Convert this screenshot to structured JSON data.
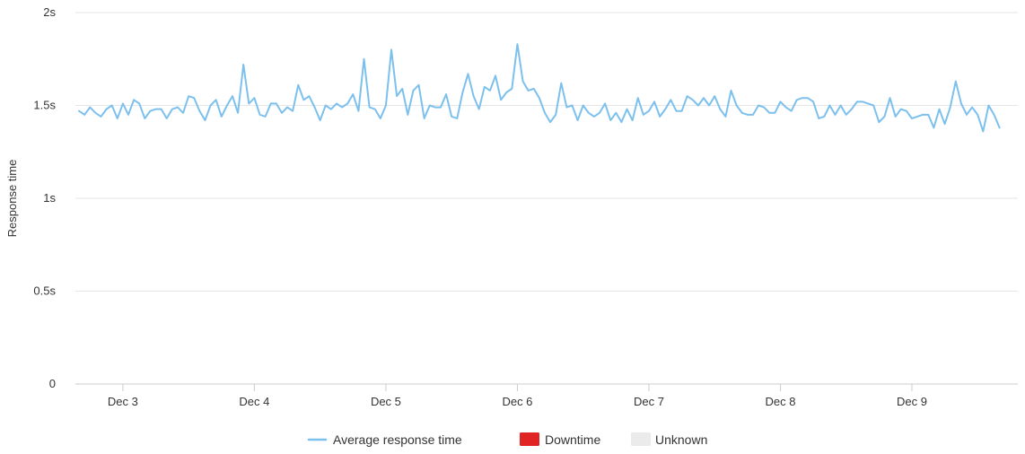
{
  "chart_data": {
    "type": "line",
    "title": "",
    "xlabel": "",
    "ylabel": "Response time",
    "y_ticks": [
      {
        "value": 0,
        "label": "0"
      },
      {
        "value": 0.5,
        "label": "0.5s"
      },
      {
        "value": 1,
        "label": "1s"
      },
      {
        "value": 1.5,
        "label": "1.5s"
      },
      {
        "value": 2,
        "label": "2s"
      }
    ],
    "ylim": [
      0,
      2
    ],
    "x_ticks": [
      {
        "value": "2023-12-03",
        "label": "Dec 3"
      },
      {
        "value": "2023-12-04",
        "label": "Dec 4"
      },
      {
        "value": "2023-12-05",
        "label": "Dec 5"
      },
      {
        "value": "2023-12-06",
        "label": "Dec 6"
      },
      {
        "value": "2023-12-07",
        "label": "Dec 7"
      },
      {
        "value": "2023-12-08",
        "label": "Dec 8"
      },
      {
        "value": "2023-12-09",
        "label": "Dec 9"
      }
    ],
    "xlim": [
      "2023-12-02T15:20",
      "2023-12-09T19:20"
    ],
    "grid": true,
    "legend_position": "bottom-center",
    "colors": {
      "series": "#7cc0ee",
      "downtime": "#e02424",
      "unknown": "#ebebeb",
      "grid": "#e6e6e6",
      "axis": "#cccccc"
    },
    "legend": [
      {
        "label": "Average response time",
        "kind": "line",
        "color": "#7cc0ee"
      },
      {
        "label": "Downtime",
        "kind": "box",
        "color": "#e02424"
      },
      {
        "label": "Unknown",
        "kind": "box",
        "color": "#ebebeb"
      }
    ],
    "series": [
      {
        "name": "Average response time",
        "color": "#7cc0ee",
        "start": "2023-12-02T16:00",
        "interval_hours": 1,
        "values": [
          1.47,
          1.45,
          1.49,
          1.46,
          1.44,
          1.48,
          1.5,
          1.43,
          1.51,
          1.45,
          1.53,
          1.51,
          1.43,
          1.47,
          1.48,
          1.48,
          1.43,
          1.48,
          1.49,
          1.46,
          1.55,
          1.54,
          1.47,
          1.42,
          1.5,
          1.53,
          1.44,
          1.5,
          1.55,
          1.46,
          1.72,
          1.51,
          1.54,
          1.45,
          1.44,
          1.51,
          1.51,
          1.46,
          1.49,
          1.47,
          1.61,
          1.53,
          1.55,
          1.49,
          1.42,
          1.5,
          1.48,
          1.51,
          1.49,
          1.51,
          1.56,
          1.47,
          1.75,
          1.49,
          1.48,
          1.43,
          1.5,
          1.8,
          1.55,
          1.59,
          1.45,
          1.58,
          1.61,
          1.43,
          1.5,
          1.49,
          1.49,
          1.56,
          1.44,
          1.43,
          1.57,
          1.67,
          1.55,
          1.48,
          1.6,
          1.58,
          1.66,
          1.53,
          1.57,
          1.59,
          1.83,
          1.63,
          1.58,
          1.59,
          1.54,
          1.46,
          1.41,
          1.45,
          1.62,
          1.49,
          1.5,
          1.42,
          1.5,
          1.46,
          1.44,
          1.46,
          1.51,
          1.42,
          1.46,
          1.41,
          1.48,
          1.42,
          1.54,
          1.45,
          1.47,
          1.52,
          1.44,
          1.48,
          1.53,
          1.47,
          1.47,
          1.55,
          1.53,
          1.5,
          1.54,
          1.5,
          1.55,
          1.48,
          1.44,
          1.58,
          1.5,
          1.46,
          1.45,
          1.45,
          1.5,
          1.49,
          1.46,
          1.46,
          1.52,
          1.49,
          1.47,
          1.53,
          1.54,
          1.54,
          1.52,
          1.43,
          1.44,
          1.5,
          1.45,
          1.5,
          1.45,
          1.48,
          1.52,
          1.52,
          1.51,
          1.5,
          1.41,
          1.44,
          1.54,
          1.44,
          1.48,
          1.47,
          1.43,
          1.44,
          1.45,
          1.45,
          1.38,
          1.48,
          1.4,
          1.49,
          1.63,
          1.51,
          1.45,
          1.49,
          1.45,
          1.36,
          1.5,
          1.45,
          1.38
        ]
      }
    ]
  }
}
